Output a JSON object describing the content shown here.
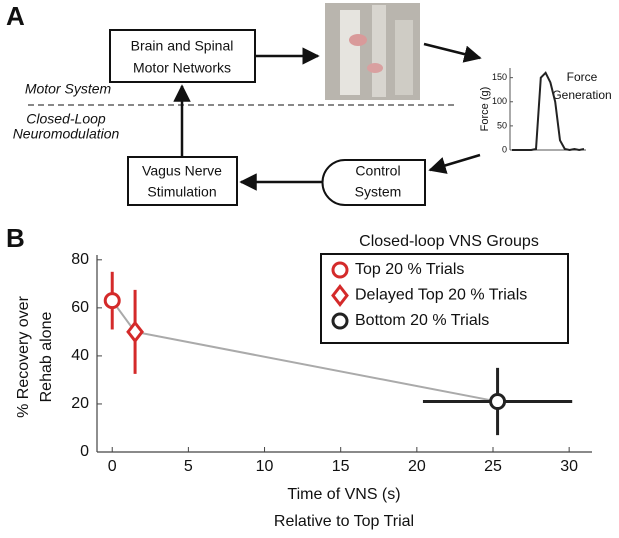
{
  "panel_a": {
    "label": "A",
    "nodes": [
      {
        "lines": [
          "Brain and Spinal",
          "Motor Networks"
        ]
      },
      {
        "lines": [
          "Vagus Nerve",
          "Stimulation"
        ]
      },
      {
        "lines": [
          "Control",
          "System"
        ]
      }
    ],
    "regions": [
      {
        "lines": [
          "Motor System"
        ]
      },
      {
        "lines": [
          "Closed-Loop",
          "Neuromodulation"
        ]
      }
    ]
  },
  "panel_b": {
    "label": "B"
  },
  "chart_data": [
    {
      "type": "line",
      "title_lines": [
        "Force",
        "Generation"
      ],
      "ylabel": "Force (g)",
      "categories": [
        null,
        null,
        null,
        null,
        null,
        null,
        null,
        null,
        null,
        null,
        null,
        null,
        null,
        null,
        null,
        null
      ],
      "values": [
        0,
        0,
        0,
        0,
        0,
        2,
        150,
        160,
        140,
        100,
        20,
        2,
        0,
        2,
        0,
        2
      ],
      "color": "#222222",
      "ylim": [
        0,
        170
      ],
      "yticks": [
        0,
        50,
        100,
        150
      ]
    },
    {
      "type": "errorbar",
      "legend_title": "Closed-loop VNS Groups",
      "xlabel_lines": [
        "Time of VNS (s)",
        "Relative to Top Trial"
      ],
      "ylabel_lines": [
        "% Recovery over",
        "Rehab alone"
      ],
      "xlim": [
        -1,
        31.5
      ],
      "ylim": [
        0,
        82
      ],
      "xticks": [
        0,
        5,
        10,
        15,
        20,
        25,
        30
      ],
      "yticks": [
        0,
        20,
        40,
        60,
        80
      ],
      "line_color": "#aaaaaa",
      "series": [
        {
          "name": "Top 20 % Trials",
          "color": "#d42a2a",
          "marker": "circle",
          "x": [
            0
          ],
          "values": [
            63
          ],
          "yerr": [
            12
          ]
        },
        {
          "name": "Delayed Top 20 % Trials",
          "color": "#d42a2a",
          "marker": "diamond",
          "x": [
            1.5
          ],
          "values": [
            50
          ],
          "yerr": [
            17.5
          ]
        },
        {
          "name": "Bottom 20 % Trials",
          "color": "#222222",
          "marker": "circle",
          "x": [
            25.3
          ],
          "values": [
            21
          ],
          "yerr": [
            14
          ],
          "xerr": [
            4.9
          ]
        }
      ]
    }
  ]
}
